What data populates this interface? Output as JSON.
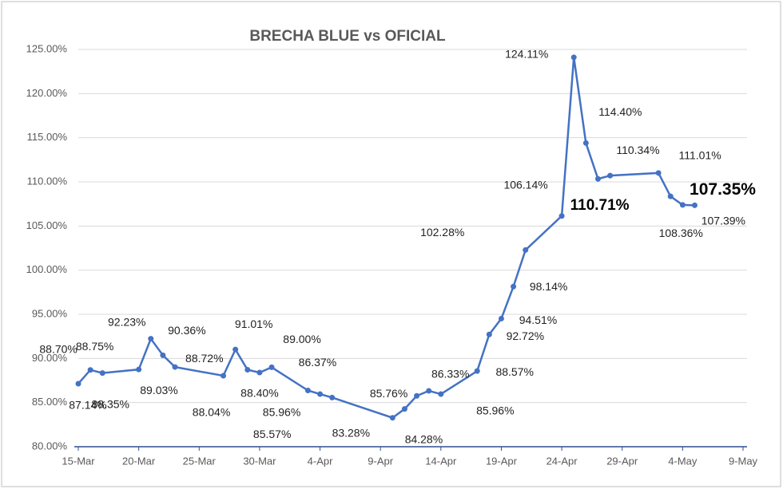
{
  "chart_data": {
    "type": "line",
    "title": "BRECHA BLUE vs OFICIAL",
    "x": [
      "15-Mar",
      "16-Mar",
      "17-Mar",
      "20-Mar",
      "21-Mar",
      "22-Mar",
      "23-Mar",
      "27-Mar",
      "28-Mar",
      "29-Mar",
      "30-Mar",
      "31-Mar",
      "3-Apr",
      "4-Apr",
      "5-Apr",
      "10-Apr",
      "11-Apr",
      "12-Apr",
      "13-Apr",
      "14-Apr",
      "17-Apr",
      "18-Apr",
      "19-Apr",
      "20-Apr",
      "21-Apr",
      "24-Apr",
      "25-Apr",
      "26-Apr",
      "27-Apr",
      "28-Apr",
      "2-May",
      "3-May",
      "4-May",
      "5-May"
    ],
    "series": [
      {
        "color": "#4472c4",
        "values": [
          87.14,
          88.7,
          88.35,
          88.75,
          92.23,
          90.36,
          89.03,
          88.04,
          91.01,
          88.72,
          88.4,
          89.0,
          86.37,
          85.96,
          85.57,
          83.28,
          84.28,
          85.76,
          86.33,
          85.96,
          88.57,
          92.72,
          94.51,
          98.14,
          102.28,
          106.14,
          124.11,
          114.4,
          110.34,
          110.71,
          111.01,
          108.36,
          107.39,
          107.35
        ],
        "value_labels": [
          "87.14%",
          "88.70%",
          "88.35%",
          "88.75%",
          "92.23%",
          "90.36%",
          "89.03%",
          "88.04%",
          "91.01%",
          "88.72%",
          "88.40%",
          "89.00%",
          "86.37%",
          "85.96%",
          "85.57%",
          "83.28%",
          "84.28%",
          "85.76%",
          "86.33%",
          "85.96%",
          "88.57%",
          "92.72%",
          "94.51%",
          "98.14%",
          "102.28%",
          "106.14%",
          "124.11%",
          "114.40%",
          "110.34%",
          "110.71%",
          "111.01%",
          "108.36%",
          "107.39%",
          "107.35%"
        ]
      }
    ],
    "xticks": [
      "15-Mar",
      "20-Mar",
      "25-Mar",
      "30-Mar",
      "4-Apr",
      "9-Apr",
      "14-Apr",
      "19-Apr",
      "24-Apr",
      "29-Apr",
      "4-May",
      "9-May"
    ],
    "ylim": [
      80,
      125
    ],
    "yticks": [
      {
        "value": 80,
        "label": "80.00%"
      },
      {
        "value": 85,
        "label": "85.00%"
      },
      {
        "value": 90,
        "label": "90.00%"
      },
      {
        "value": 95,
        "label": "95.00%"
      },
      {
        "value": 100,
        "label": "100.00%"
      },
      {
        "value": 105,
        "label": "105.00%"
      },
      {
        "value": 110,
        "label": "110.00%"
      },
      {
        "value": 115,
        "label": "115.00%"
      },
      {
        "value": 120,
        "label": "120.00%"
      },
      {
        "value": 125,
        "label": "125.00%"
      }
    ],
    "grid": true
  }
}
